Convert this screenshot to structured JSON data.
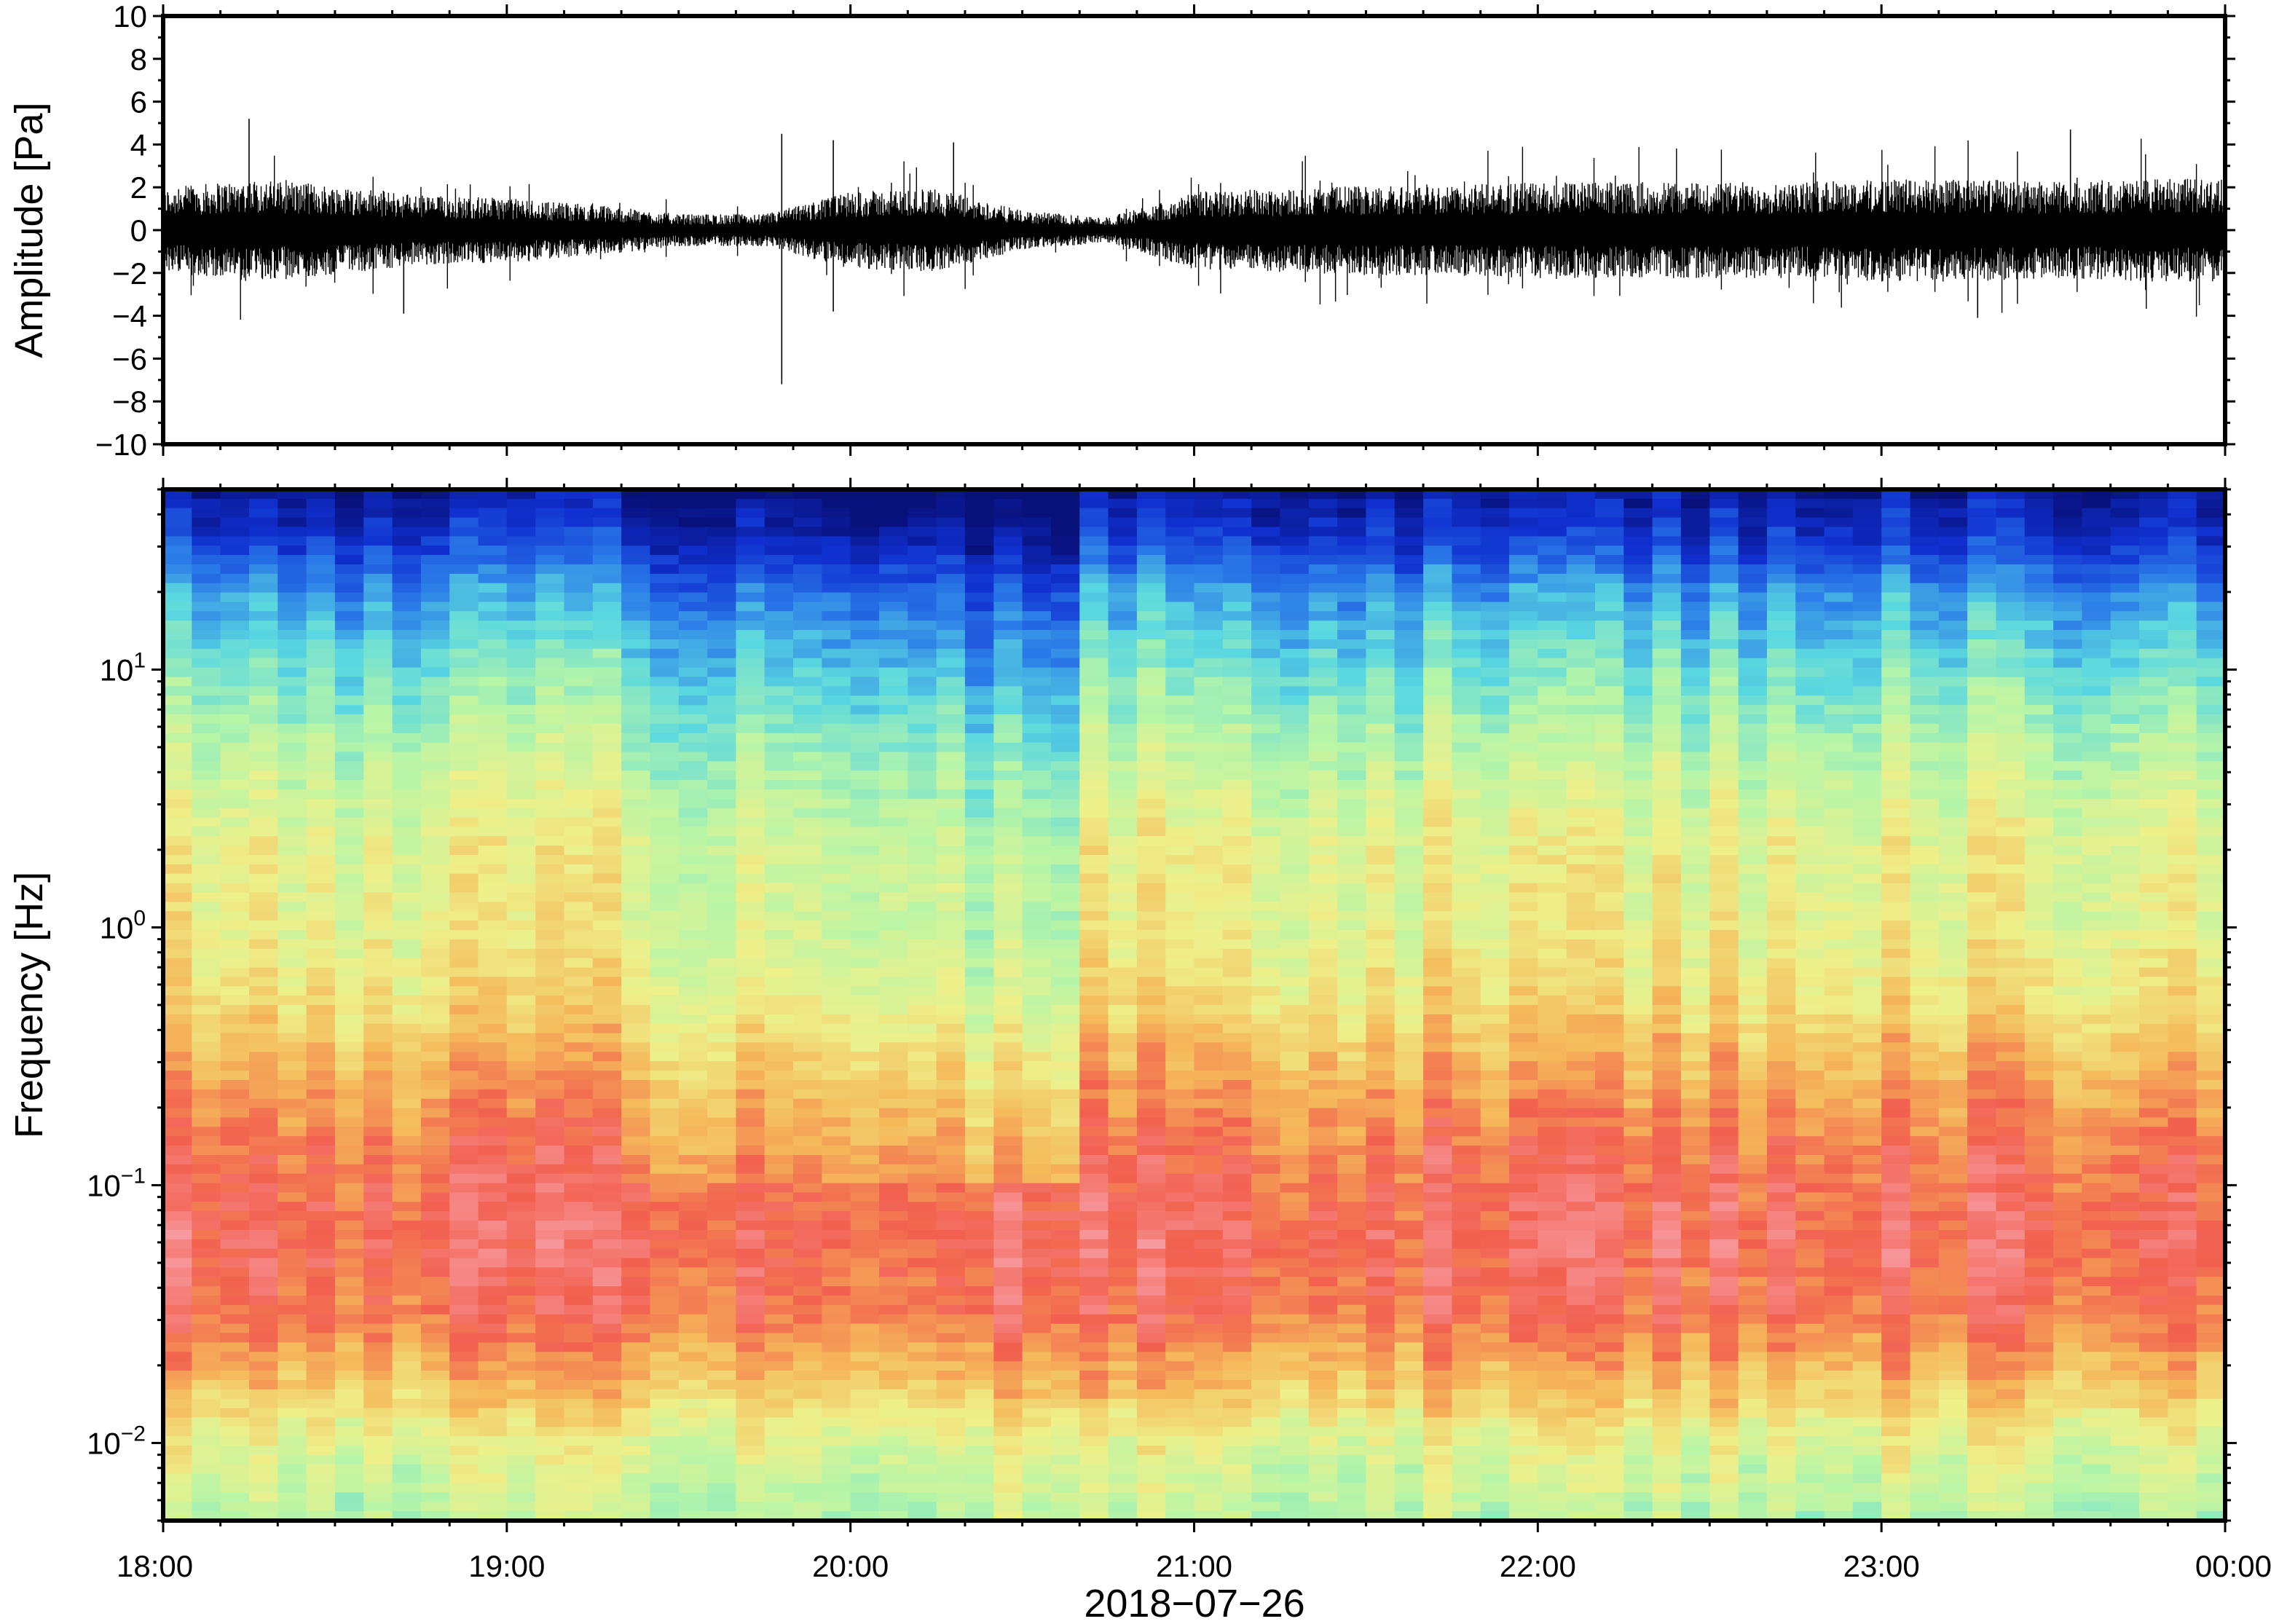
{
  "chart_data": [
    {
      "type": "line",
      "panel": "waveform",
      "ylabel": "Amplitude [Pa]",
      "ylim": [
        -10,
        10
      ],
      "yticks": [
        10,
        8,
        6,
        4,
        2,
        0,
        -2,
        -4,
        -6,
        -8,
        -10
      ],
      "ytick_labels": [
        "10",
        "8",
        "6",
        "4",
        "2",
        "0",
        "−2",
        "−4",
        "−6",
        "−8",
        "−10"
      ],
      "xlim_hours": [
        18,
        24
      ],
      "line_color": "#000000",
      "series": [
        {
          "x_hours": [
            18.0,
            18.25,
            18.5,
            18.75,
            19.0,
            19.25,
            19.5,
            19.75,
            20.0,
            20.25,
            20.5,
            20.75,
            21.0,
            21.25,
            21.5,
            21.75,
            22.0,
            22.25,
            22.5,
            22.75,
            23.0,
            23.25,
            23.5,
            23.75,
            24.0
          ],
          "envelope": [
            1.3,
            1.6,
            1.4,
            1.1,
            1.0,
            0.8,
            0.5,
            0.5,
            1.2,
            1.3,
            0.6,
            0.4,
            1.2,
            1.3,
            1.4,
            1.4,
            1.5,
            1.5,
            1.5,
            1.5,
            1.6,
            1.6,
            1.5,
            1.6,
            1.6
          ]
        }
      ],
      "peaks": [
        {
          "x_hours": 18.25,
          "y": 5.2
        },
        {
          "x_hours": 19.8,
          "y": 4.5
        },
        {
          "x_hours": 19.8,
          "y": -7.2
        },
        {
          "x_hours": 19.95,
          "y": 4.2
        },
        {
          "x_hours": 20.3,
          "y": 4.1
        },
        {
          "x_hours": 23.55,
          "y": 4.7
        },
        {
          "x_hours": 23.28,
          "y": -4.1
        },
        {
          "x_hours": 18.7,
          "y": -3.9
        },
        {
          "x_hours": 19.95,
          "y": -3.8
        }
      ]
    },
    {
      "type": "heatmap",
      "panel": "spectrogram",
      "ylabel": "Frequency [Hz]",
      "xlabel": "2018−07−26",
      "yscale": "log",
      "ylim_hz": [
        0.005,
        50
      ],
      "yticks_hz": [
        10,
        1,
        0.1,
        0.01
      ],
      "ytick_labels": [
        {
          "base": "10",
          "exp": "1"
        },
        {
          "base": "10",
          "exp": "0"
        },
        {
          "base": "10",
          "exp": "−1"
        },
        {
          "base": "10",
          "exp": "−2"
        }
      ],
      "xticks_hours": [
        18,
        19,
        20,
        21,
        22,
        23,
        24
      ],
      "xtick_labels": [
        "18:00",
        "19:00",
        "20:00",
        "21:00",
        "22:00",
        "23:00",
        "00:00"
      ],
      "colormap": [
        "#08107a",
        "#1030d0",
        "#2a7ae8",
        "#5ad8e0",
        "#b6f5a8",
        "#eef08a",
        "#f5b85a",
        "#f2604f",
        "#f8a0a8"
      ],
      "quiet_interval_hours": [
        20.35,
        20.7
      ],
      "note_levels": "relative power 0 (low) to 1 (high)",
      "frequency_profile": [
        {
          "log_f": 1.7,
          "level": 0.05
        },
        {
          "log_f": 1.5,
          "level": 0.15
        },
        {
          "log_f": 1.3,
          "level": 0.3
        },
        {
          "log_f": 1.0,
          "level": 0.42
        },
        {
          "log_f": 0.7,
          "level": 0.52
        },
        {
          "log_f": 0.3,
          "level": 0.62
        },
        {
          "log_f": 0.0,
          "level": 0.62
        },
        {
          "log_f": -0.3,
          "level": 0.68
        },
        {
          "log_f": -0.6,
          "level": 0.78
        },
        {
          "log_f": -0.9,
          "level": 0.86
        },
        {
          "log_f": -1.2,
          "level": 0.9
        },
        {
          "log_f": -1.5,
          "level": 0.86
        },
        {
          "log_f": -1.8,
          "level": 0.72
        },
        {
          "log_f": -2.0,
          "level": 0.6
        },
        {
          "log_f": -2.3,
          "level": 0.52
        }
      ]
    }
  ]
}
